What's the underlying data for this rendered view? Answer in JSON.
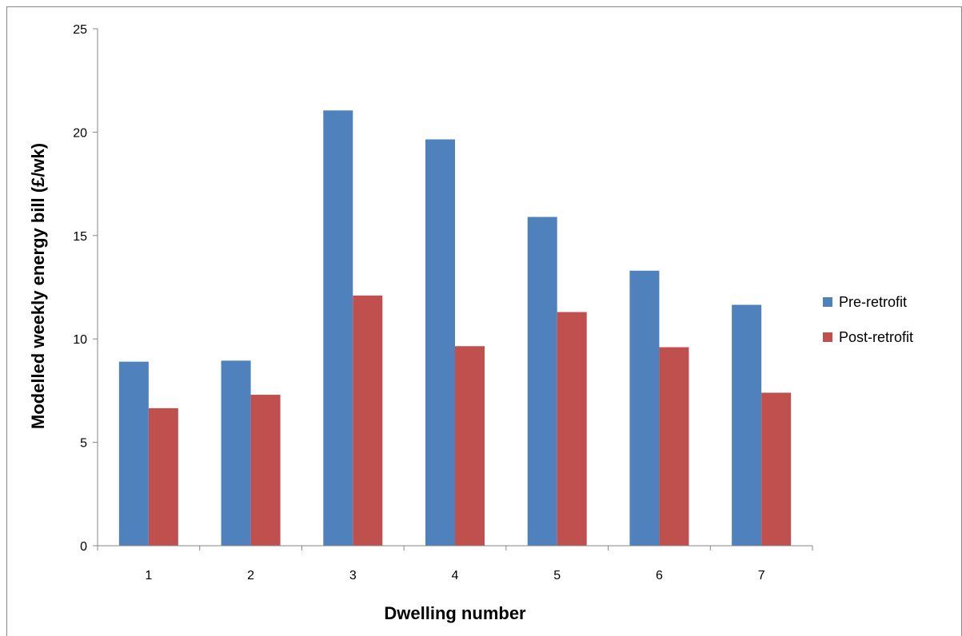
{
  "chart_data": {
    "type": "bar",
    "title": "",
    "xlabel": "Dwelling number",
    "ylabel": "Modelled weekly energy bill (£/wk)",
    "categories": [
      "1",
      "2",
      "3",
      "4",
      "5",
      "6",
      "7"
    ],
    "series": [
      {
        "name": "Pre-retrofit",
        "color": "#4F81BD",
        "values": [
          8.9,
          8.95,
          21.05,
          19.65,
          15.9,
          13.3,
          11.65
        ]
      },
      {
        "name": "Post-retrofit",
        "color": "#C0504D",
        "values": [
          6.65,
          7.3,
          12.1,
          9.65,
          11.3,
          9.6,
          7.4
        ]
      }
    ],
    "ylim": [
      0,
      25
    ],
    "yticks": [
      "0",
      "5",
      "10",
      "15",
      "20",
      "25"
    ],
    "grid": false,
    "legend": "right"
  }
}
